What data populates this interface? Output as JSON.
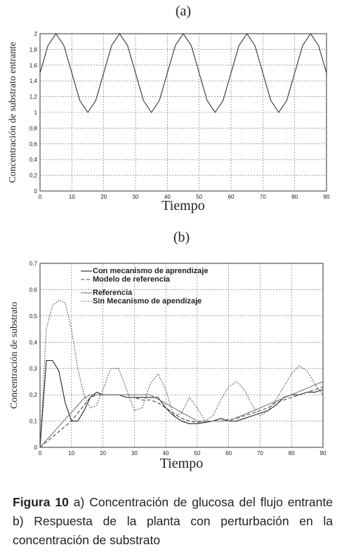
{
  "chart_data": [
    {
      "type": "line",
      "title": "(a)",
      "xlabel": "Tiempo",
      "ylabel": "Concentración de substrato entrante",
      "x": [
        0,
        2.5,
        5,
        7.5,
        10,
        12.5,
        15,
        17.5,
        20,
        22.5,
        25,
        27.5,
        30,
        32.5,
        35,
        37.5,
        40,
        42.5,
        45,
        47.5,
        50,
        52.5,
        55,
        57.5,
        60,
        62.5,
        65,
        67.5,
        70,
        72.5,
        75,
        77.5,
        80,
        82.5,
        85,
        87.5,
        90
      ],
      "series": [
        {
          "color": "#333333",
          "style": "solid",
          "values": [
            1.5,
            1.85,
            2,
            1.85,
            1.5,
            1.15,
            1,
            1.15,
            1.5,
            1.85,
            2,
            1.85,
            1.5,
            1.15,
            1,
            1.15,
            1.5,
            1.85,
            2,
            1.85,
            1.5,
            1.15,
            1,
            1.15,
            1.5,
            1.85,
            2,
            1.85,
            1.5,
            1.15,
            1,
            1.15,
            1.5,
            1.85,
            2,
            1.85,
            1.5
          ]
        }
      ],
      "xlim": [
        0,
        90
      ],
      "xticks": [
        0,
        10,
        20,
        30,
        40,
        50,
        60,
        70,
        80,
        90
      ],
      "ylim": [
        0,
        2
      ],
      "yticks": [
        0,
        {
          "value": 0.2,
          "label": "0,2"
        },
        {
          "value": 0.4,
          "label": "0,4"
        },
        {
          "value": 0.6,
          "label": "0,6"
        },
        {
          "value": 0.8,
          "label": "0,8"
        },
        1,
        {
          "value": 1.2,
          "label": "1,2"
        },
        {
          "value": 1.4,
          "label": "1,4"
        },
        {
          "value": 1.6,
          "label": "1,6"
        },
        {
          "value": 1.8,
          "label": "1,8"
        },
        2
      ],
      "grid": true
    },
    {
      "type": "line",
      "title": "(b)",
      "xlabel": "Tiempo",
      "ylabel": "Concentración de substrato",
      "x": [
        0,
        2,
        4,
        6,
        8,
        10,
        12,
        14,
        16,
        18,
        20,
        22.5,
        25,
        27.5,
        30,
        32.5,
        35,
        37.5,
        40,
        42.5,
        45,
        47.5,
        50,
        52.5,
        55,
        57.5,
        60,
        62.5,
        65,
        67.5,
        70,
        72.5,
        75,
        77.5,
        80,
        82.5,
        85,
        87.5,
        90
      ],
      "series": [
        {
          "name": "Con mecanismo de aprendizaje",
          "color": "#222222",
          "style": "solid",
          "values": [
            0,
            0.33,
            0.33,
            0.29,
            0.17,
            0.1,
            0.1,
            0.14,
            0.19,
            0.21,
            0.2,
            0.2,
            0.2,
            0.19,
            0.19,
            0.19,
            0.19,
            0.19,
            0.15,
            0.12,
            0.1,
            0.09,
            0.09,
            0.095,
            0.1,
            0.11,
            0.1,
            0.1,
            0.11,
            0.12,
            0.13,
            0.14,
            0.16,
            0.19,
            0.2,
            0.2,
            0.21,
            0.21,
            0.22
          ]
        },
        {
          "name": "Modelo de referencia",
          "color": "#444444",
          "style": "dashed",
          "values": [
            0,
            0.02,
            0.04,
            0.06,
            0.08,
            0.1,
            0.13,
            0.16,
            0.19,
            0.2,
            0.2,
            0.2,
            0.2,
            0.19,
            0.19,
            0.18,
            0.18,
            0.17,
            0.15,
            0.13,
            0.11,
            0.1,
            0.095,
            0.1,
            0.1,
            0.1,
            0.105,
            0.11,
            0.12,
            0.13,
            0.14,
            0.15,
            0.17,
            0.18,
            0.19,
            0.2,
            0.21,
            0.22,
            0.23
          ]
        },
        {
          "name": "Referencia",
          "color": "#777777",
          "style": "solid",
          "values": [
            0,
            0.027,
            0.053,
            0.08,
            0.107,
            0.133,
            0.16,
            0.187,
            0.2,
            0.2,
            0.2,
            0.2,
            0.2,
            0.2,
            0.2,
            0.2,
            0.2,
            0.183,
            0.167,
            0.15,
            0.133,
            0.117,
            0.1,
            0.1,
            0.1,
            0.1,
            0.1,
            0.113,
            0.125,
            0.138,
            0.15,
            0.163,
            0.175,
            0.188,
            0.2,
            0.213,
            0.225,
            0.238,
            0.25
          ]
        },
        {
          "name": "Sin Mecanismo de apendizaje",
          "color": "#555555",
          "style": "dotted",
          "values": [
            0,
            0.45,
            0.54,
            0.56,
            0.55,
            0.45,
            0.3,
            0.2,
            0.15,
            0.16,
            0.22,
            0.3,
            0.3,
            0.22,
            0.14,
            0.15,
            0.24,
            0.28,
            0.22,
            0.12,
            0.13,
            0.19,
            0.15,
            0.1,
            0.12,
            0.18,
            0.23,
            0.25,
            0.22,
            0.16,
            0.12,
            0.14,
            0.18,
            0.23,
            0.28,
            0.31,
            0.29,
            0.24,
            0.2
          ]
        }
      ],
      "xlim": [
        0,
        90
      ],
      "xticks": [
        0,
        10,
        20,
        30,
        40,
        50,
        60,
        70,
        80,
        90
      ],
      "ylim": [
        0,
        0.7
      ],
      "yticks": [
        0,
        {
          "value": 0.1,
          "label": "0,1"
        },
        {
          "value": 0.2,
          "label": "0,2"
        },
        {
          "value": 0.3,
          "label": "0,3"
        },
        {
          "value": 0.4,
          "label": "0,4"
        },
        {
          "value": 0.5,
          "label": "0,5"
        },
        {
          "value": 0.6,
          "label": "0,6"
        },
        {
          "value": 0.7,
          "label": "0,7"
        }
      ],
      "grid": true,
      "legend": "top-left"
    }
  ],
  "caption": {
    "label": "Figura 10",
    "text": "a) Concentración de glucosa del flujo entrante b) Respuesta de la planta con perturbación en la concentración de substrato"
  }
}
